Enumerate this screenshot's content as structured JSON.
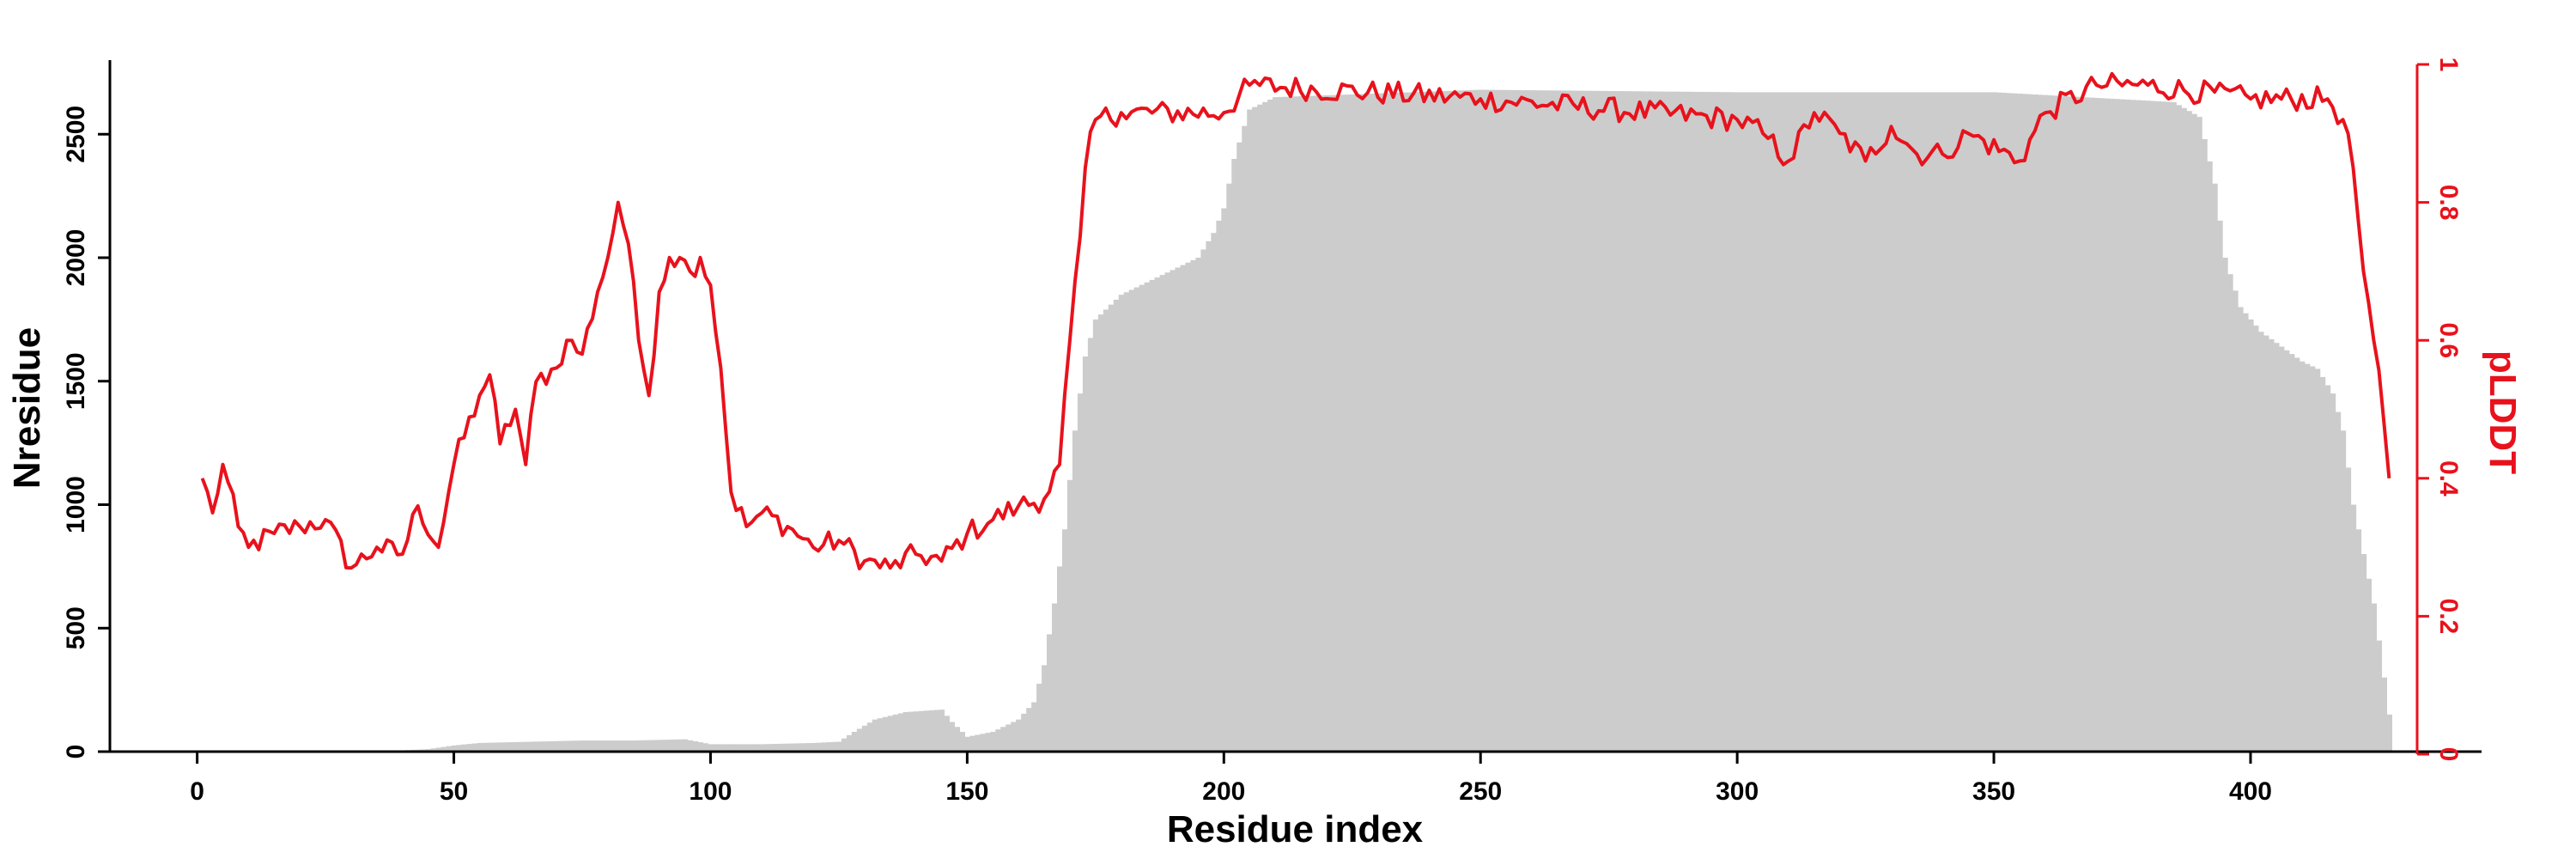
{
  "chart_data": {
    "type": "bar",
    "title": "",
    "xlabel": "Residue index",
    "ylabel": "Nresidue",
    "y2label": "pLDDT",
    "xlim": [
      -17,
      445
    ],
    "ylim": [
      0,
      2800
    ],
    "y2lim": [
      0,
      1
    ],
    "x_ticks": [
      "0",
      "50",
      "100",
      "150",
      "200",
      "250",
      "300",
      "350",
      "400"
    ],
    "y_ticks": [
      "0",
      "500",
      "1000",
      "1500",
      "2000",
      "2500"
    ],
    "y2_ticks": [
      "0",
      "0.2",
      "0.4",
      "0.6",
      "0.8",
      "1"
    ],
    "grid": false,
    "legend": "none",
    "colors": {
      "bars": "#cccccc",
      "line": "#e8121c",
      "axis": "#000000",
      "right_axis": "#e8121c"
    },
    "series": [
      {
        "kind": "bar",
        "axis": "left",
        "knots": [
          [
            1,
            0
          ],
          [
            20,
            0
          ],
          [
            40,
            5
          ],
          [
            45,
            10
          ],
          [
            50,
            25
          ],
          [
            55,
            35
          ],
          [
            75,
            45
          ],
          [
            85,
            45
          ],
          [
            95,
            50
          ],
          [
            100,
            30
          ],
          [
            110,
            30
          ],
          [
            120,
            35
          ],
          [
            125,
            40
          ],
          [
            128,
            80
          ],
          [
            132,
            130
          ],
          [
            138,
            160
          ],
          [
            145,
            170
          ],
          [
            147,
            120
          ],
          [
            150,
            60
          ],
          [
            155,
            80
          ],
          [
            160,
            130
          ],
          [
            163,
            200
          ],
          [
            165,
            350
          ],
          [
            167,
            600
          ],
          [
            169,
            900
          ],
          [
            171,
            1300
          ],
          [
            173,
            1600
          ],
          [
            175,
            1750
          ],
          [
            180,
            1850
          ],
          [
            190,
            1950
          ],
          [
            195,
            2000
          ],
          [
            198,
            2100
          ],
          [
            200,
            2200
          ],
          [
            202,
            2400
          ],
          [
            205,
            2600
          ],
          [
            210,
            2650
          ],
          [
            250,
            2680
          ],
          [
            300,
            2670
          ],
          [
            350,
            2670
          ],
          [
            385,
            2630
          ],
          [
            390,
            2570
          ],
          [
            393,
            2300
          ],
          [
            395,
            2000
          ],
          [
            398,
            1800
          ],
          [
            402,
            1700
          ],
          [
            410,
            1580
          ],
          [
            413,
            1550
          ],
          [
            416,
            1450
          ],
          [
            418,
            1300
          ],
          [
            420,
            1000
          ],
          [
            422,
            800
          ],
          [
            424,
            600
          ],
          [
            426,
            300
          ],
          [
            427,
            150
          ]
        ]
      },
      {
        "kind": "line",
        "axis": "right",
        "knots": [
          [
            1,
            0.4
          ],
          [
            3,
            0.35
          ],
          [
            5,
            0.42
          ],
          [
            8,
            0.33
          ],
          [
            10,
            0.3
          ],
          [
            15,
            0.32
          ],
          [
            20,
            0.33
          ],
          [
            25,
            0.34
          ],
          [
            30,
            0.27
          ],
          [
            35,
            0.3
          ],
          [
            40,
            0.29
          ],
          [
            43,
            0.36
          ],
          [
            47,
            0.3
          ],
          [
            50,
            0.42
          ],
          [
            55,
            0.52
          ],
          [
            57,
            0.55
          ],
          [
            59,
            0.45
          ],
          [
            62,
            0.5
          ],
          [
            64,
            0.42
          ],
          [
            66,
            0.54
          ],
          [
            70,
            0.56
          ],
          [
            72,
            0.6
          ],
          [
            75,
            0.58
          ],
          [
            78,
            0.67
          ],
          [
            80,
            0.72
          ],
          [
            82,
            0.8
          ],
          [
            84,
            0.74
          ],
          [
            86,
            0.6
          ],
          [
            88,
            0.52
          ],
          [
            90,
            0.67
          ],
          [
            92,
            0.72
          ],
          [
            94,
            0.72
          ],
          [
            96,
            0.7
          ],
          [
            98,
            0.72
          ],
          [
            100,
            0.68
          ],
          [
            102,
            0.56
          ],
          [
            104,
            0.38
          ],
          [
            107,
            0.33
          ],
          [
            110,
            0.35
          ],
          [
            115,
            0.33
          ],
          [
            120,
            0.3
          ],
          [
            125,
            0.31
          ],
          [
            130,
            0.28
          ],
          [
            135,
            0.27
          ],
          [
            140,
            0.29
          ],
          [
            145,
            0.28
          ],
          [
            150,
            0.32
          ],
          [
            155,
            0.34
          ],
          [
            160,
            0.36
          ],
          [
            165,
            0.37
          ],
          [
            168,
            0.42
          ],
          [
            170,
            0.6
          ],
          [
            172,
            0.75
          ],
          [
            173,
            0.85
          ],
          [
            175,
            0.92
          ],
          [
            180,
            0.93
          ],
          [
            200,
            0.93
          ],
          [
            205,
            0.97
          ],
          [
            250,
            0.95
          ],
          [
            300,
            0.92
          ],
          [
            305,
            0.9
          ],
          [
            310,
            0.86
          ],
          [
            315,
            0.93
          ],
          [
            320,
            0.9
          ],
          [
            325,
            0.86
          ],
          [
            330,
            0.91
          ],
          [
            335,
            0.87
          ],
          [
            340,
            0.87
          ],
          [
            345,
            0.9
          ],
          [
            355,
            0.86
          ],
          [
            360,
            0.93
          ],
          [
            370,
            0.97
          ],
          [
            380,
            0.97
          ],
          [
            400,
            0.95
          ],
          [
            415,
            0.95
          ],
          [
            418,
            0.92
          ],
          [
            420,
            0.85
          ],
          [
            422,
            0.7
          ],
          [
            424,
            0.6
          ],
          [
            426,
            0.48
          ],
          [
            427,
            0.4
          ]
        ]
      }
    ]
  }
}
